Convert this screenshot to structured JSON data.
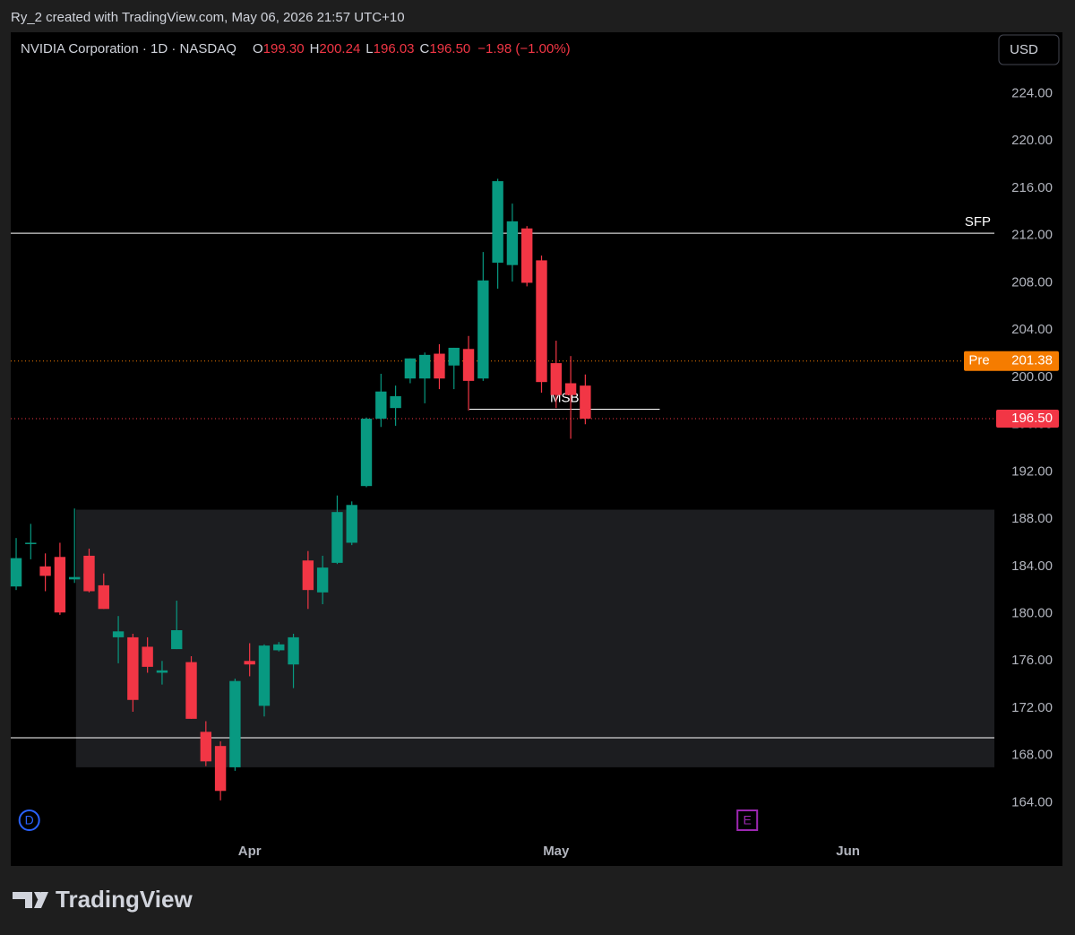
{
  "chart_data": {
    "type": "candlestick",
    "credit": "Ry_2 created with TradingView.com, May 06, 2026 21:57 UTC+10",
    "title": "NVIDIA Corporation · 1D · NASDAQ",
    "header_ohlc": {
      "labels": [
        "O",
        "H",
        "L",
        "C"
      ],
      "values": [
        199.3,
        200.24,
        196.03,
        196.5
      ],
      "value_labels": [
        "199.30",
        "200.24",
        "196.03",
        "196.50"
      ],
      "change": "−1.98 (−1.00%)"
    },
    "currency": "USD",
    "up_color": "#089981",
    "down_color": "#f23645",
    "categories": [
      null,
      null,
      null,
      null,
      null,
      null,
      null,
      null,
      null,
      null,
      null,
      null,
      null,
      null,
      null,
      null,
      null,
      null,
      null,
      null,
      null,
      null,
      null,
      null,
      null,
      null,
      null,
      null,
      null,
      null,
      null,
      null,
      null,
      null,
      null,
      null,
      null,
      null,
      null,
      null
    ],
    "open": [
      182.3,
      185.9,
      184.0,
      184.8,
      182.9,
      184.9,
      182.4,
      178.0,
      178.0,
      177.2,
      175.0,
      177.0,
      175.9,
      170.0,
      168.8,
      167.0,
      176.0,
      172.2,
      176.9,
      175.7,
      184.5,
      181.8,
      184.3,
      186.0,
      190.8,
      196.5,
      197.4,
      199.9,
      199.9,
      202.0,
      201.0,
      202.4,
      199.9,
      209.7,
      209.5,
      212.6,
      209.9,
      201.2,
      199.5,
      199.3
    ],
    "high": [
      186.4,
      187.6,
      185.1,
      186.0,
      188.9,
      185.5,
      183.4,
      179.8,
      178.3,
      178.0,
      176.0,
      181.1,
      176.4,
      170.9,
      169.2,
      174.5,
      177.5,
      177.4,
      177.6,
      178.3,
      185.3,
      184.9,
      190.0,
      189.5,
      196.6,
      200.3,
      199.3,
      201.6,
      202.1,
      202.8,
      202.5,
      203.5,
      210.6,
      216.8,
      214.7,
      212.8,
      210.3,
      203.1,
      201.8,
      200.24
    ],
    "low": [
      182.0,
      184.6,
      181.9,
      179.9,
      182.6,
      181.8,
      180.4,
      175.8,
      171.7,
      175.0,
      174.0,
      177.0,
      171.1,
      167.1,
      164.2,
      166.7,
      174.7,
      171.3,
      176.8,
      173.7,
      180.4,
      180.8,
      184.2,
      185.8,
      190.7,
      195.8,
      195.9,
      199.5,
      197.8,
      199.0,
      199.0,
      197.2,
      199.7,
      207.5,
      208.1,
      207.7,
      198.7,
      197.4,
      194.8,
      196.03
    ],
    "close": [
      184.7,
      186.0,
      183.2,
      180.1,
      183.1,
      181.9,
      180.4,
      178.5,
      172.7,
      175.5,
      175.2,
      178.6,
      171.1,
      167.5,
      165.0,
      174.3,
      175.7,
      177.3,
      177.4,
      178.0,
      182.0,
      183.9,
      188.6,
      189.2,
      196.5,
      198.8,
      198.4,
      201.6,
      201.9,
      199.9,
      202.5,
      199.7,
      208.2,
      216.6,
      213.2,
      208.0,
      199.6,
      198.5,
      198.5,
      196.5
    ],
    "xlim": [
      -0.37,
      67.03
    ],
    "xticks": [
      {
        "value": 16,
        "label": "Apr"
      },
      {
        "value": 37,
        "label": "May"
      },
      {
        "value": 57,
        "label": "Jun"
      }
    ],
    "ylim": [
      161.0,
      229.2
    ],
    "yticks": [
      {
        "value": 164,
        "label": "164.00"
      },
      {
        "value": 168,
        "label": "168.00"
      },
      {
        "value": 172,
        "label": "172.00"
      },
      {
        "value": 176,
        "label": "176.00"
      },
      {
        "value": 180,
        "label": "180.00"
      },
      {
        "value": 184,
        "label": "184.00"
      },
      {
        "value": 188,
        "label": "188.00"
      },
      {
        "value": 192,
        "label": "192.00"
      },
      {
        "value": 196,
        "label": "196.00"
      },
      {
        "value": 200,
        "label": "200.00"
      },
      {
        "value": 204,
        "label": "204.00"
      },
      {
        "value": 208,
        "label": "208.00"
      },
      {
        "value": 212,
        "label": "212.00"
      },
      {
        "value": 216,
        "label": "216.00"
      },
      {
        "value": 220,
        "label": "220.00"
      },
      {
        "value": 224,
        "label": "224.00"
      }
    ],
    "zone": {
      "ylim": [
        167.0,
        188.8
      ],
      "x_start": 4.1,
      "color": "#1c1d20"
    },
    "levels": [
      {
        "label": "SFP",
        "value": 212.2,
        "color": "#ffffff"
      },
      {
        "value": 169.5,
        "color": "#ffffff"
      },
      {
        "label": "MSB",
        "value": 197.3,
        "x_range": [
          31.06,
          44.1
        ],
        "color": "#ffffff"
      }
    ],
    "premarket": {
      "label": "Pre",
      "price": {
        "value": 201.38,
        "label": "201.38"
      },
      "color": "#f57c00"
    },
    "last_price": {
      "value": 196.5,
      "label": "196.50",
      "color": "#f23645"
    },
    "events": [
      {
        "label": "D",
        "x": 0.9,
        "color": "#2962ff"
      },
      {
        "label": "E",
        "x": 50.1,
        "color": "#9c27b0"
      }
    ],
    "brand": "TradingView"
  }
}
